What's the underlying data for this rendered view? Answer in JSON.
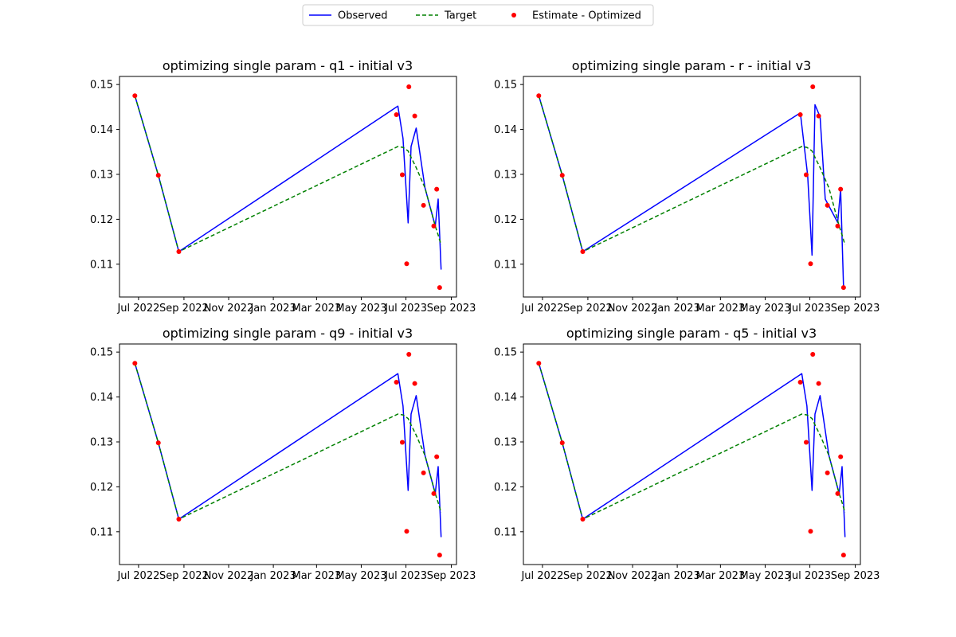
{
  "legend": {
    "items": [
      {
        "label": "Observed",
        "color": "#0000ff",
        "style": "solid-line"
      },
      {
        "label": "Target",
        "color": "#008000",
        "style": "dashed-line"
      },
      {
        "label": "Estimate - Optimized",
        "color": "#ff0000",
        "style": "dot"
      }
    ]
  },
  "chart_data": [
    {
      "type": "line",
      "title": "optimizing single param - q1 - initial v3",
      "xlabel": "",
      "ylabel": "",
      "x_tick_labels": [
        "Jul 2022",
        "Sep 2022",
        "Nov 2022",
        "Jan 2023",
        "Mar 2023",
        "May 2023",
        "Jul 2023",
        "Sep 2023"
      ],
      "y_tick_labels": [
        "0.11",
        "0.12",
        "0.13",
        "0.14",
        "0.15"
      ],
      "series": [
        {
          "name": "Observed",
          "points": [
            [
              "2022-06-26",
              0.1475
            ],
            [
              "2022-07-28",
              0.1298
            ],
            [
              "2022-08-25",
              0.1128
            ],
            [
              "2023-06-20",
              0.1452
            ],
            [
              "2023-06-27",
              0.138
            ],
            [
              "2023-07-04",
              0.1192
            ],
            [
              "2023-07-08",
              0.1362
            ],
            [
              "2023-07-15",
              0.1403
            ],
            [
              "2023-07-27",
              0.127
            ],
            [
              "2023-08-10",
              0.1185
            ],
            [
              "2023-08-14",
              0.1245
            ],
            [
              "2023-08-18",
              0.1088
            ]
          ]
        },
        {
          "name": "Target",
          "points": [
            [
              "2022-06-26",
              0.1475
            ],
            [
              "2022-07-28",
              0.1298
            ],
            [
              "2022-08-25",
              0.1128
            ],
            [
              "2023-06-20",
              0.1362
            ],
            [
              "2023-06-27",
              0.136
            ],
            [
              "2023-07-04",
              0.1352
            ],
            [
              "2023-07-08",
              0.1338
            ],
            [
              "2023-07-15",
              0.1315
            ],
            [
              "2023-07-27",
              0.127
            ],
            [
              "2023-08-10",
              0.1185
            ],
            [
              "2023-08-14",
              0.1165
            ],
            [
              "2023-08-18",
              0.1143
            ]
          ]
        },
        {
          "name": "Estimate - Optimized",
          "points": [
            [
              "2022-06-26",
              0.1475
            ],
            [
              "2022-07-28",
              0.1298
            ],
            [
              "2022-08-25",
              0.1128
            ],
            [
              "2023-06-18",
              0.1433
            ],
            [
              "2023-06-26",
              0.1299
            ],
            [
              "2023-07-02",
              0.1101
            ],
            [
              "2023-07-05",
              0.1495
            ],
            [
              "2023-07-13",
              0.143
            ],
            [
              "2023-07-25",
              0.1231
            ],
            [
              "2023-08-08",
              0.1185
            ],
            [
              "2023-08-12",
              0.1267
            ],
            [
              "2023-08-16",
              0.1048
            ]
          ]
        }
      ]
    },
    {
      "type": "line",
      "title": "optimizing single param - r - initial v3",
      "xlabel": "",
      "ylabel": "",
      "x_tick_labels": [
        "Jul 2022",
        "Sep 2022",
        "Nov 2022",
        "Jan 2023",
        "Mar 2023",
        "May 2023",
        "Jul 2023",
        "Sep 2023"
      ],
      "y_tick_labels": [
        "0.11",
        "0.12",
        "0.13",
        "0.14",
        "0.15"
      ],
      "series": [
        {
          "name": "Observed",
          "points": [
            [
              "2022-06-26",
              0.1475
            ],
            [
              "2022-07-28",
              0.1298
            ],
            [
              "2022-08-25",
              0.1128
            ],
            [
              "2023-06-18",
              0.1437
            ],
            [
              "2023-06-28",
              0.1298
            ],
            [
              "2023-07-04",
              0.112
            ],
            [
              "2023-07-08",
              0.1455
            ],
            [
              "2023-07-15",
              0.1428
            ],
            [
              "2023-07-22",
              0.1245
            ],
            [
              "2023-08-08",
              0.1193
            ],
            [
              "2023-08-12",
              0.1267
            ],
            [
              "2023-08-16",
              0.1048
            ]
          ]
        },
        {
          "name": "Target",
          "points": [
            [
              "2022-06-26",
              0.1475
            ],
            [
              "2022-07-28",
              0.1298
            ],
            [
              "2022-08-25",
              0.1128
            ],
            [
              "2023-06-20",
              0.1362
            ],
            [
              "2023-06-27",
              0.136
            ],
            [
              "2023-07-04",
              0.1352
            ],
            [
              "2023-07-08",
              0.1338
            ],
            [
              "2023-07-15",
              0.1315
            ],
            [
              "2023-07-27",
              0.127
            ],
            [
              "2023-08-10",
              0.1185
            ],
            [
              "2023-08-14",
              0.1165
            ],
            [
              "2023-08-18",
              0.1143
            ]
          ]
        },
        {
          "name": "Estimate - Optimized",
          "points": [
            [
              "2022-06-26",
              0.1475
            ],
            [
              "2022-07-28",
              0.1298
            ],
            [
              "2022-08-25",
              0.1128
            ],
            [
              "2023-06-18",
              0.1433
            ],
            [
              "2023-06-26",
              0.1299
            ],
            [
              "2023-07-02",
              0.1101
            ],
            [
              "2023-07-05",
              0.1495
            ],
            [
              "2023-07-13",
              0.143
            ],
            [
              "2023-07-25",
              0.1231
            ],
            [
              "2023-08-08",
              0.1185
            ],
            [
              "2023-08-12",
              0.1267
            ],
            [
              "2023-08-16",
              0.1048
            ]
          ]
        }
      ]
    },
    {
      "type": "line",
      "title": "optimizing single param - q9 - initial v3",
      "xlabel": "",
      "ylabel": "",
      "x_tick_labels": [
        "Jul 2022",
        "Sep 2022",
        "Nov 2022",
        "Jan 2023",
        "Mar 2023",
        "May 2023",
        "Jul 2023",
        "Sep 2023"
      ],
      "y_tick_labels": [
        "0.11",
        "0.12",
        "0.13",
        "0.14",
        "0.15"
      ],
      "series": [
        {
          "name": "Observed",
          "points": [
            [
              "2022-06-26",
              0.1475
            ],
            [
              "2022-07-28",
              0.1298
            ],
            [
              "2022-08-25",
              0.1128
            ],
            [
              "2023-06-20",
              0.1452
            ],
            [
              "2023-06-27",
              0.138
            ],
            [
              "2023-07-04",
              0.1192
            ],
            [
              "2023-07-08",
              0.1362
            ],
            [
              "2023-07-15",
              0.1403
            ],
            [
              "2023-07-27",
              0.127
            ],
            [
              "2023-08-10",
              0.1185
            ],
            [
              "2023-08-14",
              0.1245
            ],
            [
              "2023-08-18",
              0.1088
            ]
          ]
        },
        {
          "name": "Target",
          "points": [
            [
              "2022-06-26",
              0.1475
            ],
            [
              "2022-07-28",
              0.1298
            ],
            [
              "2022-08-25",
              0.1128
            ],
            [
              "2023-06-20",
              0.1362
            ],
            [
              "2023-06-27",
              0.136
            ],
            [
              "2023-07-04",
              0.1352
            ],
            [
              "2023-07-08",
              0.1338
            ],
            [
              "2023-07-15",
              0.1315
            ],
            [
              "2023-07-27",
              0.127
            ],
            [
              "2023-08-10",
              0.1185
            ],
            [
              "2023-08-14",
              0.1165
            ],
            [
              "2023-08-18",
              0.1143
            ]
          ]
        },
        {
          "name": "Estimate - Optimized",
          "points": [
            [
              "2022-06-26",
              0.1475
            ],
            [
              "2022-07-28",
              0.1298
            ],
            [
              "2022-08-25",
              0.1128
            ],
            [
              "2023-06-18",
              0.1433
            ],
            [
              "2023-06-26",
              0.1299
            ],
            [
              "2023-07-02",
              0.1101
            ],
            [
              "2023-07-05",
              0.1495
            ],
            [
              "2023-07-13",
              0.143
            ],
            [
              "2023-07-25",
              0.1231
            ],
            [
              "2023-08-08",
              0.1185
            ],
            [
              "2023-08-12",
              0.1267
            ],
            [
              "2023-08-16",
              0.1048
            ]
          ]
        }
      ]
    },
    {
      "type": "line",
      "title": "optimizing single param - q5 - initial v3",
      "xlabel": "",
      "ylabel": "",
      "x_tick_labels": [
        "Jul 2022",
        "Sep 2022",
        "Nov 2022",
        "Jan 2023",
        "Mar 2023",
        "May 2023",
        "Jul 2023",
        "Sep 2023"
      ],
      "y_tick_labels": [
        "0.11",
        "0.12",
        "0.13",
        "0.14",
        "0.15"
      ],
      "series": [
        {
          "name": "Observed",
          "points": [
            [
              "2022-06-26",
              0.1475
            ],
            [
              "2022-07-28",
              0.1298
            ],
            [
              "2022-08-25",
              0.1128
            ],
            [
              "2023-06-20",
              0.1452
            ],
            [
              "2023-06-27",
              0.138
            ],
            [
              "2023-07-04",
              0.1192
            ],
            [
              "2023-07-08",
              0.1362
            ],
            [
              "2023-07-15",
              0.1403
            ],
            [
              "2023-07-27",
              0.127
            ],
            [
              "2023-08-10",
              0.1185
            ],
            [
              "2023-08-14",
              0.1245
            ],
            [
              "2023-08-18",
              0.1088
            ]
          ]
        },
        {
          "name": "Target",
          "points": [
            [
              "2022-06-26",
              0.1475
            ],
            [
              "2022-07-28",
              0.1298
            ],
            [
              "2022-08-25",
              0.1128
            ],
            [
              "2023-06-20",
              0.1362
            ],
            [
              "2023-06-27",
              0.136
            ],
            [
              "2023-07-04",
              0.1352
            ],
            [
              "2023-07-08",
              0.1338
            ],
            [
              "2023-07-15",
              0.1315
            ],
            [
              "2023-07-27",
              0.127
            ],
            [
              "2023-08-10",
              0.1185
            ],
            [
              "2023-08-14",
              0.1165
            ],
            [
              "2023-08-18",
              0.1143
            ]
          ]
        },
        {
          "name": "Estimate - Optimized",
          "points": [
            [
              "2022-06-26",
              0.1475
            ],
            [
              "2022-07-28",
              0.1298
            ],
            [
              "2022-08-25",
              0.1128
            ],
            [
              "2023-06-18",
              0.1433
            ],
            [
              "2023-06-26",
              0.1299
            ],
            [
              "2023-07-02",
              0.1101
            ],
            [
              "2023-07-05",
              0.1495
            ],
            [
              "2023-07-13",
              0.143
            ],
            [
              "2023-07-25",
              0.1231
            ],
            [
              "2023-08-08",
              0.1185
            ],
            [
              "2023-08-12",
              0.1267
            ],
            [
              "2023-08-16",
              0.1048
            ]
          ]
        }
      ]
    }
  ]
}
